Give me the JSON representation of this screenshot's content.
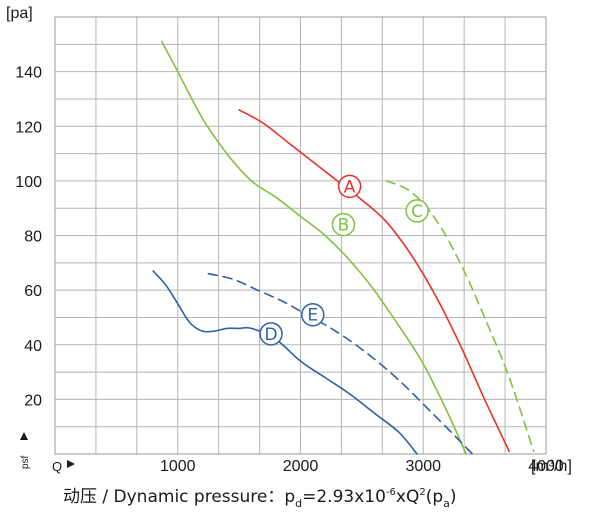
{
  "chart_data": {
    "type": "line",
    "title": "",
    "ylabel": "[pa]",
    "xlabel": "[m³/h]",
    "x_axis_marker": "Q",
    "y_axis_marker": "psf",
    "xlim": [
      0,
      4000
    ],
    "ylim": [
      0,
      160
    ],
    "x_grid_step": 333.33,
    "y_grid_step": 10,
    "grid": true,
    "xticks": [
      1000,
      2000,
      3000,
      4000
    ],
    "yticks": [
      20,
      40,
      60,
      80,
      100,
      120,
      140
    ],
    "series": [
      {
        "name": "A",
        "color": "#e8312d",
        "dash": false,
        "x": [
          1500,
          1700,
          1900,
          2100,
          2300,
          2500,
          2700,
          2900,
          3100,
          3300,
          3500,
          3700
        ],
        "y": [
          126,
          121,
          114,
          107,
          100,
          93,
          85,
          73,
          58,
          40,
          20,
          1
        ],
        "label_at": [
          2400,
          98
        ]
      },
      {
        "name": "B",
        "color": "#7fc241",
        "dash": false,
        "x": [
          870,
          1000,
          1200,
          1400,
          1600,
          1800,
          2000,
          2200,
          2400,
          2600,
          2800,
          3000,
          3200,
          3300,
          3350
        ],
        "y": [
          151,
          140,
          123,
          110,
          100,
          94,
          87,
          80,
          71,
          60,
          47,
          33,
          15,
          5,
          0
        ],
        "label_at": [
          2350,
          84
        ]
      },
      {
        "name": "C",
        "color": "#7fc241",
        "dash": true,
        "x": [
          2700,
          2900,
          3100,
          3300,
          3500,
          3700,
          3900
        ],
        "y": [
          100,
          96,
          86,
          70,
          50,
          28,
          1
        ],
        "label_at": [
          2950,
          89
        ]
      },
      {
        "name": "D",
        "color": "#2f5fa6",
        "dash": false,
        "x": [
          800,
          900,
          1000,
          1100,
          1200,
          1300,
          1400,
          1500,
          1600,
          1800,
          2000,
          2200,
          2400,
          2600,
          2800,
          2950
        ],
        "y": [
          67,
          62,
          55,
          48,
          45,
          45,
          46,
          46,
          46,
          42,
          34,
          28,
          22,
          15,
          8,
          0
        ],
        "label_at": [
          1760,
          44
        ]
      },
      {
        "name": "E",
        "color": "#2f5fa6",
        "dash": true,
        "x": [
          1250,
          1450,
          1650,
          1850,
          2050,
          2250,
          2450,
          2650,
          2850,
          3050,
          3250,
          3400
        ],
        "y": [
          66,
          64,
          60,
          56,
          51,
          46,
          40,
          33,
          25,
          16,
          7,
          0
        ],
        "label_at": [
          2100,
          51
        ]
      }
    ]
  },
  "labels": {
    "y_unit": "[pa]",
    "x_unit": "[m³/h]",
    "x_marker": "Q",
    "y_marker": "psf"
  },
  "caption": {
    "prefix": "动压 / Dynamic pressure：",
    "p": "p",
    "p_sub": "d",
    "eq": "=2.93x10",
    "exp": "-6",
    "mid": "xQ",
    "q_exp": "2",
    "unit_open": "(p",
    "unit_sub": "a",
    "unit_close": ")"
  }
}
